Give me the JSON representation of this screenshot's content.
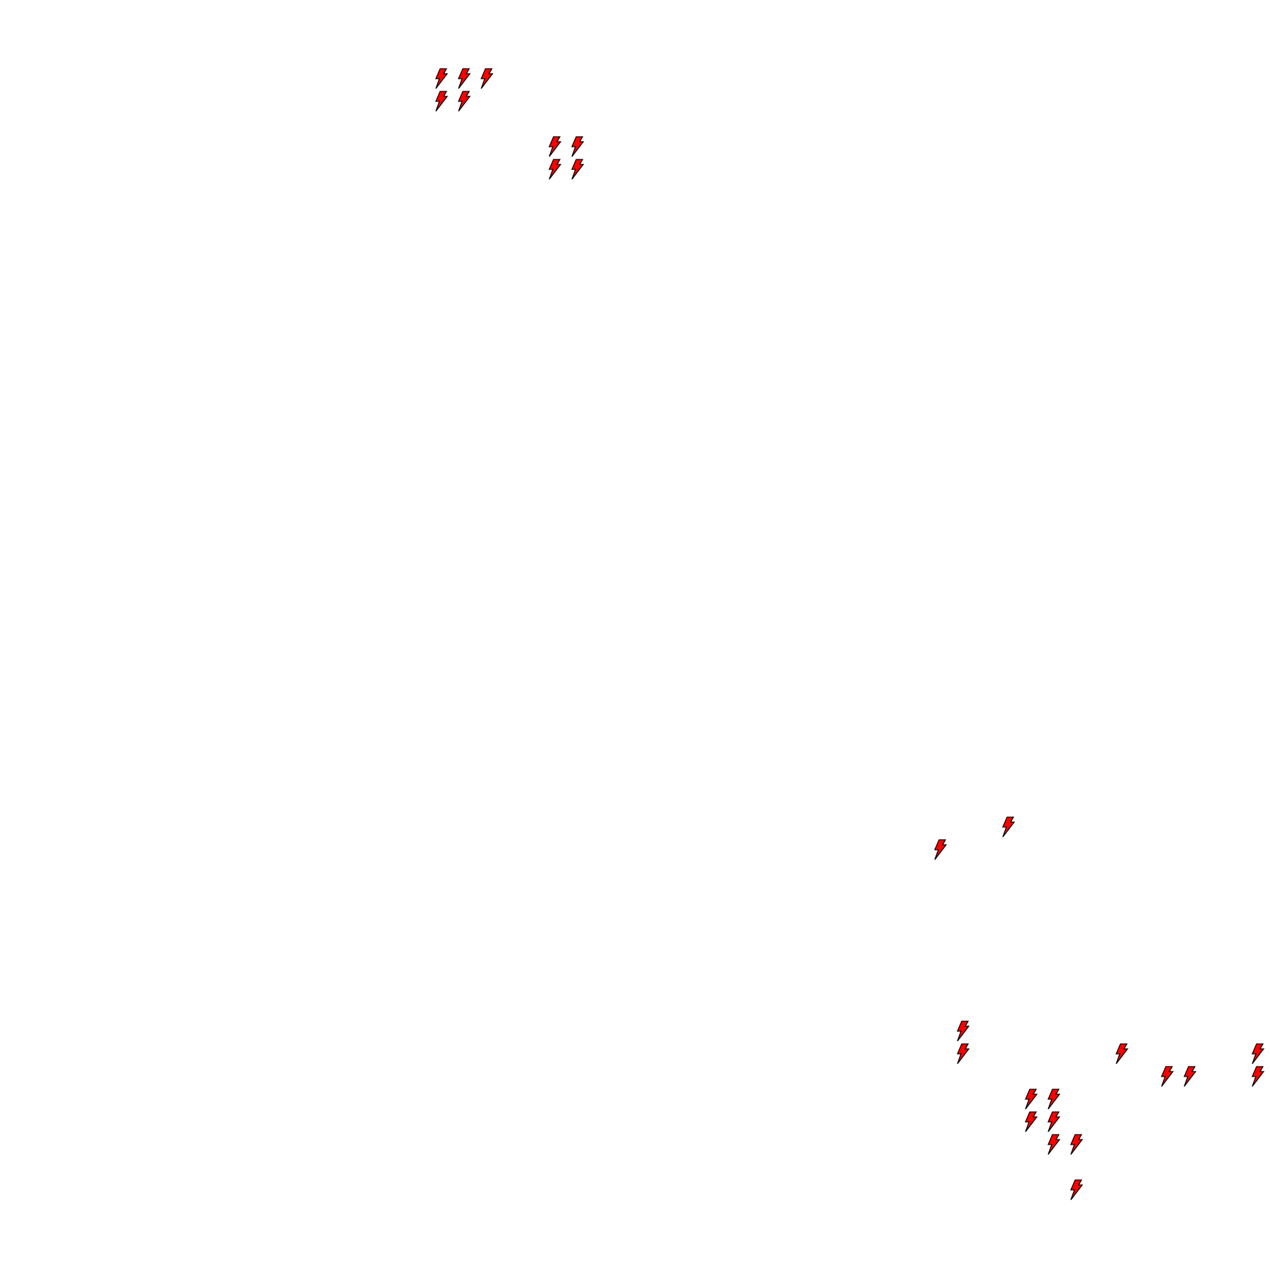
{
  "map": {
    "marker_icon": "lightning-bolt-icon",
    "marker_fill": "#ff0000",
    "marker_stroke": "#000000",
    "background": "#ffffff"
  }
}
